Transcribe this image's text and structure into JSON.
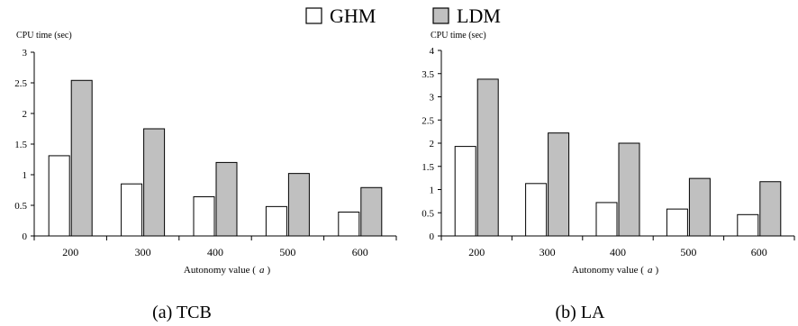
{
  "legend": {
    "items": [
      {
        "label": "GHM",
        "color": "#ffffff"
      },
      {
        "label": "LDM",
        "color": "#c0c0c0"
      }
    ]
  },
  "chart_data": [
    {
      "type": "bar",
      "caption": "(a) TCB",
      "ylabel": "CPU time (sec)",
      "xlabel": "Autonomy value (a)",
      "xlabel_prefix": "Autonomy value (",
      "xlabel_var": "a",
      "xlabel_suffix": ")",
      "categories": [
        "200",
        "300",
        "400",
        "500",
        "600"
      ],
      "ylim": [
        0,
        3
      ],
      "yticks": [
        "0",
        "0.5",
        "1",
        "1.5",
        "2",
        "2.5",
        "3"
      ],
      "series": [
        {
          "name": "GHM",
          "values": [
            1.31,
            0.85,
            0.64,
            0.48,
            0.39
          ]
        },
        {
          "name": "LDM",
          "values": [
            2.54,
            1.75,
            1.2,
            1.02,
            0.79
          ]
        }
      ]
    },
    {
      "type": "bar",
      "caption": "(b) LA",
      "ylabel": "CPU time (sec)",
      "xlabel": "Autonomy value (a)",
      "xlabel_prefix": "Autonomy value (",
      "xlabel_var": "a",
      "xlabel_suffix": ")",
      "categories": [
        "200",
        "300",
        "400",
        "500",
        "600"
      ],
      "ylim": [
        0,
        4
      ],
      "yticks": [
        "0",
        "0.5",
        "1",
        "1.5",
        "2",
        "2.5",
        "3",
        "3.5",
        "4"
      ],
      "series": [
        {
          "name": "GHM",
          "values": [
            1.93,
            1.13,
            0.72,
            0.58,
            0.46
          ]
        },
        {
          "name": "LDM",
          "values": [
            3.38,
            2.22,
            2.0,
            1.24,
            1.17
          ]
        }
      ]
    }
  ]
}
